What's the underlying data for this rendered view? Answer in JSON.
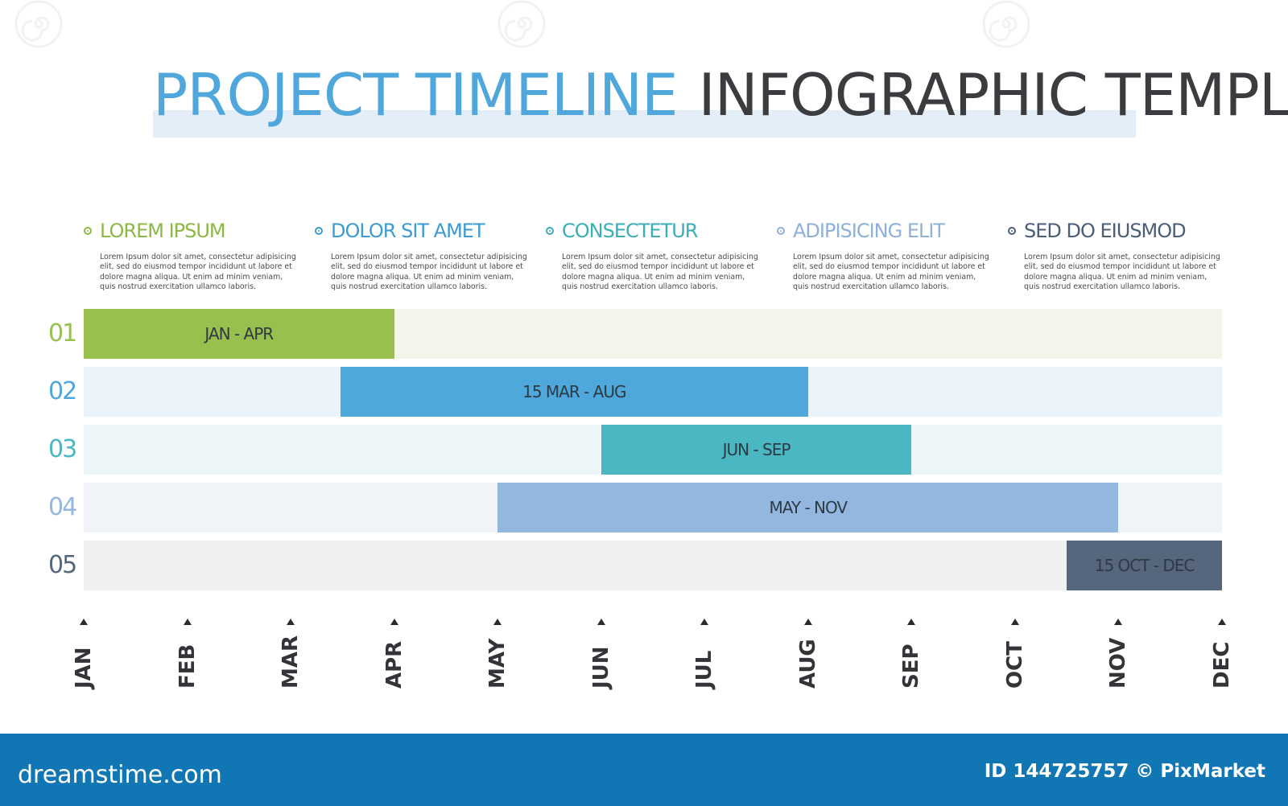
{
  "title": {
    "part1": "PROJECT TIMELINE",
    "part2": "INFOGRAPHIC TEMPLATE",
    "part1_color": "#4fa7dc",
    "part2_color": "#3b3c40"
  },
  "legend": [
    {
      "heading": "LOREM IPSUM",
      "color": "#8cb844",
      "text": "Lorem Ipsum dolor sit amet, consectetur adipisicing elit, sed do eiusmod tempor incididunt ut labore et dolore magna aliqua. Ut enim ad minim veniam, quis nostrud exercitation ullamco laboris."
    },
    {
      "heading": "DOLOR SIT AMET",
      "color": "#3d9bd3",
      "text": "Lorem Ipsum dolor sit amet, consectetur adipisicing elit, sed do eiusmod tempor incididunt ut labore et dolore magna aliqua. Ut enim ad minim veniam, quis nostrud exercitation ullamco laboris."
    },
    {
      "heading": "CONSECTETUR",
      "color": "#3aaeb9",
      "text": "Lorem Ipsum dolor sit amet, consectetur adipisicing elit, sed do eiusmod tempor incididunt ut labore et dolore magna aliqua. Ut enim ad minim veniam, quis nostrud exercitation ullamco laboris."
    },
    {
      "heading": "ADIPISICING ELIT",
      "color": "#8fb0d9",
      "text": "Lorem Ipsum dolor sit amet, consectetur adipisicing elit, sed do eiusmod tempor incididunt ut labore et dolore magna aliqua. Ut enim ad minim veniam, quis nostrud exercitation ullamco laboris."
    },
    {
      "heading": "SED DO EIUSMOD",
      "color": "#4a5e78",
      "text": "Lorem Ipsum dolor sit amet, consectetur adipisicing elit, sed do eiusmod tempor incididunt ut labore et dolore magna aliqua. Ut enim ad minim veniam, quis nostrud exercitation ullamco laboris."
    }
  ],
  "rows": [
    {
      "number": "01",
      "label": "JAN - APR",
      "start": 0,
      "end": 3,
      "bar_color": "#99bf4f",
      "track_color": "#f1f5ea",
      "number_color": "#99bf4f"
    },
    {
      "number": "02",
      "label": "15 MAR - AUG",
      "start": 2.48,
      "end": 7,
      "bar_color": "#4fa8dc",
      "track_color": "#eaf3fa",
      "number_color": "#4fa8dc"
    },
    {
      "number": "03",
      "label": "JUN - SEP",
      "start": 5,
      "end": 8,
      "bar_color": "#4ab7c3",
      "track_color": "#ecf6f8",
      "number_color": "#4ab7c3"
    },
    {
      "number": "04",
      "label": "MAY - NOV",
      "start": 4,
      "end": 10,
      "bar_color": "#94b7e0",
      "track_color": "#f0f4f9",
      "number_color": "#94b7e0"
    },
    {
      "number": "05",
      "label": "15 OCT - DEC",
      "start": 9.5,
      "end": 11,
      "bar_color": "#55667d",
      "track_color": "#eef0f2",
      "number_color": "#55667d"
    }
  ],
  "months": [
    "JAN",
    "FEB",
    "MAR",
    "APR",
    "MAY",
    "JUN",
    "JUL",
    "AUG",
    "SEP",
    "OCT",
    "NOV",
    "DEC"
  ],
  "footer": {
    "brand": "dreamstime.com",
    "id_text": "ID 144725757 © PixMarket",
    "background": "#1076b4"
  }
}
